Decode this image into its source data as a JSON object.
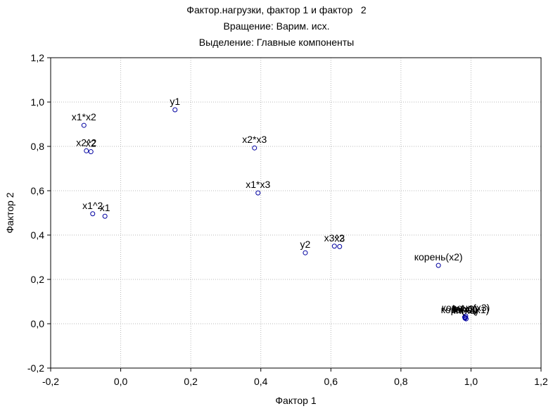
{
  "chart_data": {
    "type": "scatter",
    "title": "Фактор.нагрузки, фактор 1 и фактор   2",
    "subtitle": [
      "Вращение: Варим. исх.",
      "Выделение: Главные компоненты"
    ],
    "xlabel": "Фактор 1",
    "ylabel": "Фактор 2",
    "xlim": [
      -0.2,
      1.2
    ],
    "ylim": [
      -0.2,
      1.2
    ],
    "xticks": [
      "-0,2",
      "0,0",
      "0,2",
      "0,4",
      "0,6",
      "0,8",
      "1,0",
      "1,2"
    ],
    "yticks": [
      "-0,2",
      "0,0",
      "0,2",
      "0,4",
      "0,6",
      "0,8",
      "1,0",
      "1,2"
    ],
    "grid": true,
    "marker_color": "#0000a0",
    "points": [
      {
        "label": "y1",
        "x": 0.155,
        "y": 0.965
      },
      {
        "label": "x1*x2",
        "x": -0.105,
        "y": 0.895
      },
      {
        "label": "x2^2",
        "x": -0.098,
        "y": 0.78
      },
      {
        "label": "x2",
        "x": -0.085,
        "y": 0.776
      },
      {
        "label": "x2*x3",
        "x": 0.382,
        "y": 0.793
      },
      {
        "label": "x1*x3",
        "x": 0.392,
        "y": 0.59
      },
      {
        "label": "x1^2",
        "x": -0.08,
        "y": 0.496
      },
      {
        "label": "x1",
        "x": -0.045,
        "y": 0.485
      },
      {
        "label": "y2",
        "x": 0.527,
        "y": 0.32
      },
      {
        "label": "x3^2",
        "x": 0.61,
        "y": 0.35
      },
      {
        "label": "x3",
        "x": 0.625,
        "y": 0.348
      },
      {
        "label": "корень(x2)",
        "x": 0.907,
        "y": 0.263
      },
      {
        "label": "корень(x3)",
        "x": 0.985,
        "y": 0.035
      },
      {
        "label": "корень(x1)",
        "x": 0.983,
        "y": 0.025
      },
      {
        "label": "ln(x1)",
        "x": 0.982,
        "y": 0.03
      },
      {
        "label": "ln(x2)",
        "x": 0.984,
        "y": 0.028
      },
      {
        "label": "ln(x3)",
        "x": 0.986,
        "y": 0.022
      }
    ]
  }
}
